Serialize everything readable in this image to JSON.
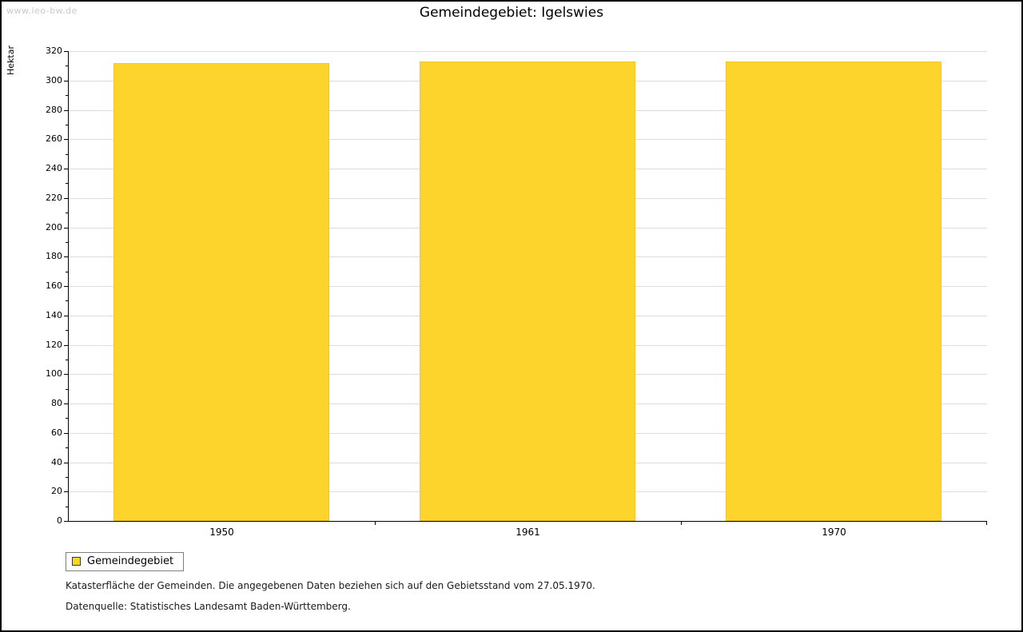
{
  "watermark": "www.leo-bw.de",
  "title": "Gemeindegebiet: Igelswies",
  "chart_data": {
    "type": "bar",
    "categories": [
      "1950",
      "1961",
      "1970"
    ],
    "series": [
      {
        "name": "Gemeindegebiet",
        "values": [
          312,
          313,
          313
        ]
      }
    ],
    "title": "Gemeindegebiet: Igelswies",
    "xlabel": "",
    "ylabel": "Hektar",
    "ylim": [
      0,
      320
    ],
    "ytick_step": 20,
    "grid": true,
    "bar_color": "#fcd42c",
    "legend_position": "bottom-left"
  },
  "legend": {
    "label": "Gemeindegebiet"
  },
  "footnotes": {
    "line1": "Katasterfläche der Gemeinden. Die angegebenen Daten beziehen sich auf den Gebietsstand vom 27.05.1970.",
    "line2": "Datenquelle: Statistisches Landesamt Baden-Württemberg."
  }
}
